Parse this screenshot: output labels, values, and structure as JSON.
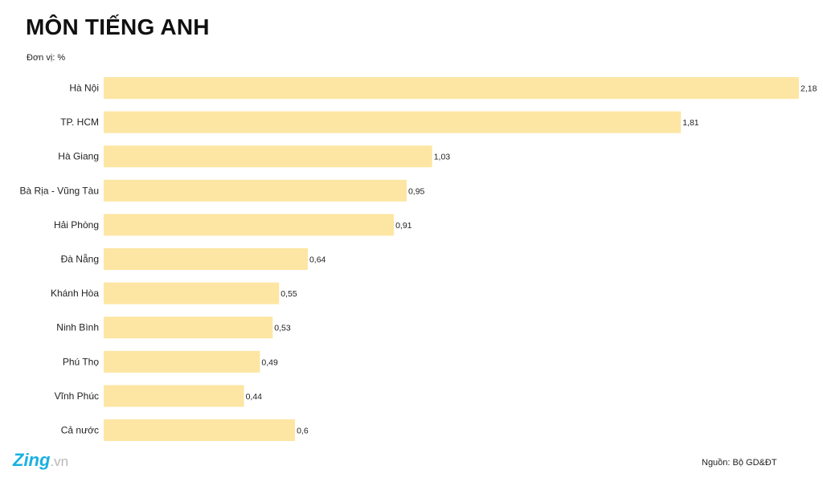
{
  "title": "MÔN TIẾNG ANH",
  "unit": "Đơn vị: %",
  "logo": {
    "main": "Zing",
    "suffix": ".vn"
  },
  "source": "Nguồn: Bộ GD&ĐT",
  "colors": {
    "bar": "#fde6a3",
    "text": "#222222"
  },
  "chart_data": {
    "type": "bar",
    "orientation": "horizontal",
    "title": "MÔN TIẾNG ANH",
    "unit": "Đơn vị: %",
    "categories": [
      "Hà Nội",
      "TP. HCM",
      "Hà Giang",
      "Bà Rịa - Vũng Tàu",
      "Hải Phòng",
      "Đà Nẵng",
      "Khánh Hòa",
      "Ninh Bình",
      "Phú Thọ",
      "Vĩnh Phúc",
      "Cả nước"
    ],
    "values": [
      2.18,
      1.81,
      1.03,
      0.95,
      0.91,
      0.64,
      0.55,
      0.53,
      0.49,
      0.44,
      0.6
    ],
    "value_labels": [
      "2,18",
      "1,81",
      "1,03",
      "0,95",
      "0,91",
      "0,64",
      "0,55",
      "0,53",
      "0,49",
      "0,44",
      "0,6"
    ],
    "xlim": [
      0,
      2.18
    ],
    "grid": false,
    "legend": "none"
  }
}
